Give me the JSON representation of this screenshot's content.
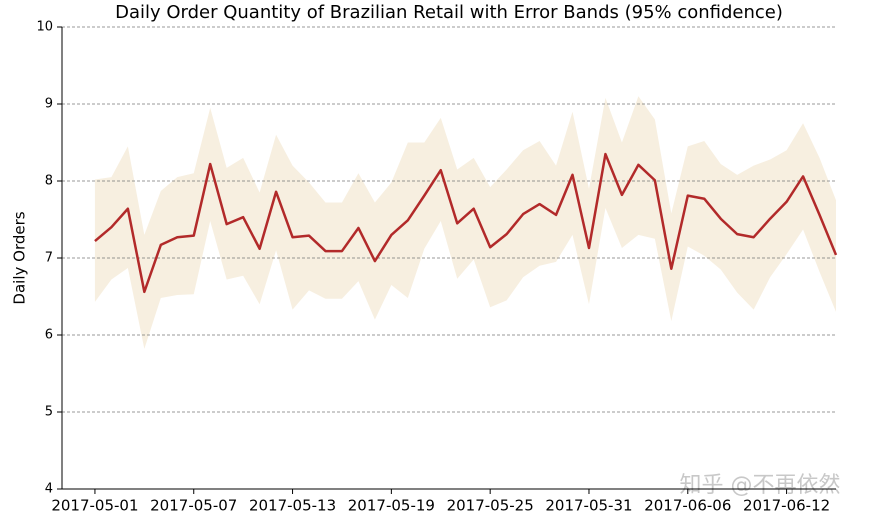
{
  "chart_data": {
    "type": "line",
    "title": "Daily Order Quantity of Brazilian Retail with Error Bands (95% confidence)",
    "ylabel": "Daily Orders",
    "watermark": "知乎 @不再依然",
    "x": [
      "2017-05-01",
      "2017-05-02",
      "2017-05-03",
      "2017-05-04",
      "2017-05-05",
      "2017-05-06",
      "2017-05-07",
      "2017-05-08",
      "2017-05-09",
      "2017-05-10",
      "2017-05-11",
      "2017-05-12",
      "2017-05-13",
      "2017-05-14",
      "2017-05-15",
      "2017-05-16",
      "2017-05-17",
      "2017-05-18",
      "2017-05-19",
      "2017-05-20",
      "2017-05-21",
      "2017-05-22",
      "2017-05-23",
      "2017-05-24",
      "2017-05-25",
      "2017-05-26",
      "2017-05-27",
      "2017-05-28",
      "2017-05-29",
      "2017-05-30",
      "2017-05-31",
      "2017-06-01",
      "2017-06-02",
      "2017-06-03",
      "2017-06-04",
      "2017-06-05",
      "2017-06-06",
      "2017-06-07",
      "2017-06-08",
      "2017-06-09",
      "2017-06-10",
      "2017-06-11",
      "2017-06-12",
      "2017-06-13",
      "2017-06-14",
      "2017-06-15"
    ],
    "series": [
      {
        "color": "#b22a2a",
        "band_color": "#f7efe0",
        "values": [
          7.22,
          7.4,
          7.64,
          6.56,
          7.17,
          7.27,
          7.29,
          8.22,
          7.44,
          7.53,
          7.12,
          7.86,
          7.27,
          7.29,
          7.09,
          7.09,
          7.39,
          6.96,
          7.3,
          7.49,
          7.81,
          8.14,
          7.45,
          7.64,
          7.14,
          7.31,
          7.57,
          7.7,
          7.56,
          8.08,
          7.13,
          8.35,
          7.82,
          8.21,
          8.01,
          6.86,
          7.81,
          7.77,
          7.51,
          7.31,
          7.27,
          7.51,
          7.73,
          8.06,
          7.56,
          7.04
        ],
        "upper": [
          8.02,
          8.05,
          8.45,
          7.3,
          7.87,
          8.05,
          8.1,
          8.95,
          8.17,
          8.3,
          7.85,
          8.6,
          8.2,
          7.98,
          7.72,
          7.72,
          8.1,
          7.72,
          7.98,
          8.5,
          8.5,
          8.82,
          8.15,
          8.3,
          7.92,
          8.15,
          8.4,
          8.52,
          8.2,
          8.9,
          7.9,
          9.08,
          8.5,
          9.1,
          8.8,
          7.58,
          8.45,
          8.52,
          8.22,
          8.08,
          8.2,
          8.28,
          8.4,
          8.75,
          8.3,
          7.75
        ],
        "lower": [
          6.43,
          6.72,
          6.87,
          5.82,
          6.48,
          6.52,
          6.53,
          7.48,
          6.72,
          6.77,
          6.4,
          7.1,
          6.33,
          6.58,
          6.47,
          6.47,
          6.7,
          6.2,
          6.65,
          6.48,
          7.12,
          7.48,
          6.73,
          6.98,
          6.36,
          6.45,
          6.75,
          6.9,
          6.95,
          7.3,
          6.4,
          7.65,
          7.13,
          7.3,
          7.25,
          6.18,
          7.15,
          7.03,
          6.85,
          6.55,
          6.33,
          6.75,
          7.05,
          7.37,
          6.82,
          6.3
        ]
      }
    ],
    "xlim": [
      "2017-04-29",
      "2017-06-15"
    ],
    "xticks": [
      "2017-05-01",
      "2017-05-07",
      "2017-05-13",
      "2017-05-19",
      "2017-05-25",
      "2017-05-31",
      "2017-06-06",
      "2017-06-12"
    ],
    "ylim": [
      4,
      10
    ],
    "yticks": [
      4,
      5,
      6,
      7,
      8,
      9,
      10
    ],
    "grid": true
  }
}
